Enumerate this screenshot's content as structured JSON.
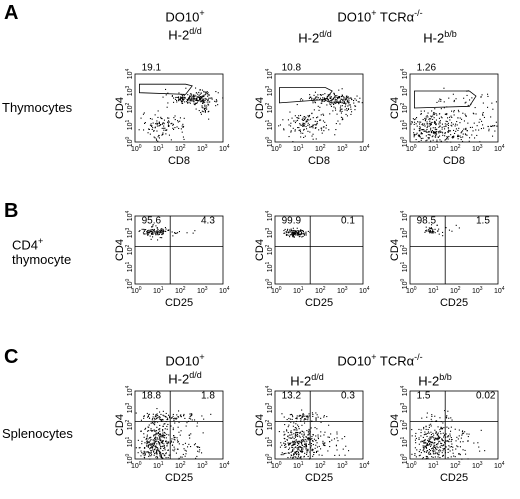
{
  "panels": {
    "A": {
      "letter": "A",
      "row_label": "Thymocytes",
      "headers": [
        {
          "line1": "DO10",
          "line1_sup": "+",
          "line2": "H-2",
          "line2_sup": "d/d"
        },
        {
          "line1": "",
          "line1_sup": "",
          "line2": "H-2",
          "line2_sup": "d/d"
        },
        {
          "line1": "",
          "line1_sup": "",
          "line2": "H-2",
          "line2_sup": "b/b"
        }
      ],
      "group_header": {
        "text": "DO10",
        "sup1": "+",
        "text2": " TCRα",
        "sup2": "-/-"
      },
      "xlabel": "CD8",
      "ylabel": "CD4"
    },
    "B": {
      "letter": "B",
      "row_label_line1": "CD4",
      "row_label_sup": "+",
      "row_label_line2": "thymocyte",
      "xlabel": "CD25",
      "ylabel": "CD4"
    },
    "C": {
      "letter": "C",
      "row_label": "Splenocytes",
      "headers": [
        {
          "line1": "DO10",
          "line1_sup": "+",
          "line2": "H-2",
          "line2_sup": "d/d"
        },
        {
          "line1": "",
          "line1_sup": "",
          "line2": "H-2",
          "line2_sup": "d/d"
        },
        {
          "line1": "",
          "line1_sup": "",
          "line2": "H-2",
          "line2_sup": "b/b"
        }
      ],
      "group_header": {
        "text": "DO10",
        "sup1": "+",
        "text2": " TCRα",
        "sup2": "-/-"
      },
      "xlabel": "CD25",
      "ylabel": "CD4"
    }
  },
  "axis_ticks": {
    "base": "10",
    "exponents": [
      "0",
      "1",
      "2",
      "3",
      "4"
    ]
  },
  "chart_data": [
    {
      "type": "scatter",
      "panel": "A",
      "column": 1,
      "xlabel": "CD8",
      "ylabel": "CD4",
      "scale": "log",
      "xlim": [
        1,
        10000
      ],
      "ylim": [
        1,
        10000
      ],
      "gate": "polygon",
      "annotations": [
        "19.1"
      ]
    },
    {
      "type": "scatter",
      "panel": "A",
      "column": 2,
      "xlabel": "CD8",
      "ylabel": "CD4",
      "scale": "log",
      "xlim": [
        1,
        10000
      ],
      "ylim": [
        1,
        10000
      ],
      "gate": "polygon",
      "annotations": [
        "10.8"
      ]
    },
    {
      "type": "scatter",
      "panel": "A",
      "column": 3,
      "xlabel": "CD8",
      "ylabel": "CD4",
      "scale": "log",
      "xlim": [
        1,
        10000
      ],
      "ylim": [
        1,
        10000
      ],
      "gate": "polygon",
      "annotations": [
        "1.26"
      ]
    },
    {
      "type": "scatter",
      "panel": "B",
      "column": 1,
      "xlabel": "CD25",
      "ylabel": "CD4",
      "scale": "log",
      "xlim": [
        1,
        10000
      ],
      "ylim": [
        1,
        10000
      ],
      "quadrants": true,
      "annotations": [
        "95.6",
        "4.3"
      ]
    },
    {
      "type": "scatter",
      "panel": "B",
      "column": 2,
      "xlabel": "CD25",
      "ylabel": "CD4",
      "scale": "log",
      "xlim": [
        1,
        10000
      ],
      "ylim": [
        1,
        10000
      ],
      "quadrants": true,
      "annotations": [
        "99.9",
        "0.1"
      ]
    },
    {
      "type": "scatter",
      "panel": "B",
      "column": 3,
      "xlabel": "CD25",
      "ylabel": "CD4",
      "scale": "log",
      "xlim": [
        1,
        10000
      ],
      "ylim": [
        1,
        10000
      ],
      "quadrants": true,
      "annotations": [
        "98.5",
        "1.5"
      ]
    },
    {
      "type": "scatter",
      "panel": "C",
      "column": 1,
      "xlabel": "CD25",
      "ylabel": "CD4",
      "scale": "log",
      "xlim": [
        1,
        10000
      ],
      "ylim": [
        1,
        10000
      ],
      "quadrants": true,
      "annotations": [
        "18.8",
        "1.8"
      ]
    },
    {
      "type": "scatter",
      "panel": "C",
      "column": 2,
      "xlabel": "CD25",
      "ylabel": "CD4",
      "scale": "log",
      "xlim": [
        1,
        10000
      ],
      "ylim": [
        1,
        10000
      ],
      "quadrants": true,
      "annotations": [
        "13.2",
        "0.3"
      ]
    },
    {
      "type": "scatter",
      "panel": "C",
      "column": 3,
      "xlabel": "CD25",
      "ylabel": "CD4",
      "scale": "log",
      "xlim": [
        1,
        10000
      ],
      "ylim": [
        1,
        10000
      ],
      "quadrants": true,
      "annotations": [
        "1.5",
        "0.02"
      ]
    }
  ]
}
